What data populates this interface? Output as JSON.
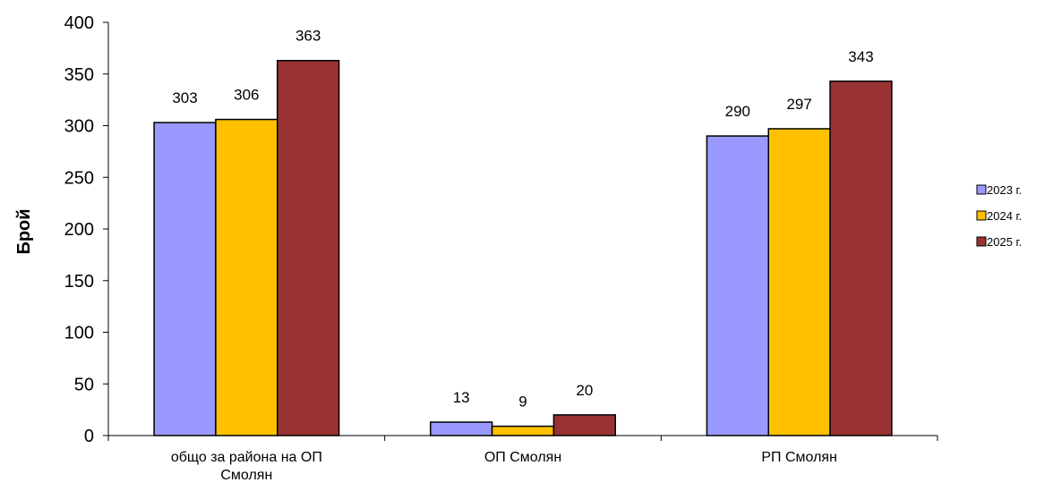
{
  "chart_data": {
    "type": "bar",
    "title": "",
    "xlabel": "",
    "ylabel": "Брой",
    "ylim": [
      0,
      400
    ],
    "yticks": [
      0,
      50,
      100,
      150,
      200,
      250,
      300,
      350,
      400
    ],
    "categories": [
      [
        "общо за района на  ОП",
        "Смолян"
      ],
      [
        "ОП Смолян"
      ],
      [
        "РП Смолян"
      ]
    ],
    "series": [
      {
        "name": "2023 г.",
        "color": "#9999FF",
        "values": [
          303,
          13,
          290
        ]
      },
      {
        "name": "2024 г.",
        "color": "#FFC000",
        "values": [
          306,
          9,
          297
        ]
      },
      {
        "name": "2025 г.",
        "color": "#993333",
        "values": [
          363,
          20,
          343
        ]
      }
    ],
    "legend_position": "right",
    "grid": false
  }
}
